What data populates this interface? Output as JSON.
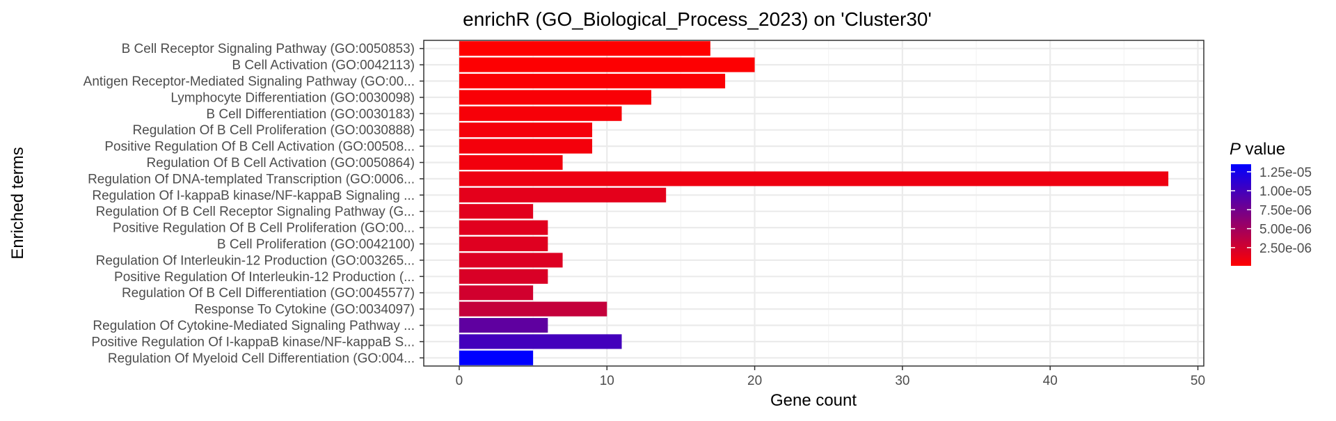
{
  "chart_data": {
    "type": "bar",
    "orientation": "horizontal",
    "title": "enrichR (GO_Biological_Process_2023) on 'Cluster30'",
    "xlabel": "Gene count",
    "ylabel": "Enriched terms",
    "xlim": [
      -2.4,
      50.4
    ],
    "xticks": [
      0,
      10,
      20,
      30,
      40,
      50
    ],
    "grid": true,
    "categories": [
      "B Cell Receptor Signaling Pathway (GO:0050853)",
      "B Cell Activation (GO:0042113)",
      "Antigen Receptor-Mediated Signaling Pathway (GO:00...",
      "Lymphocyte Differentiation (GO:0030098)",
      "B Cell Differentiation (GO:0030183)",
      "Regulation Of B Cell Proliferation (GO:0030888)",
      "Positive Regulation Of B Cell Activation (GO:00508...",
      "Regulation Of B Cell Activation (GO:0050864)",
      "Regulation Of DNA-templated Transcription (GO:0006...",
      "Regulation Of I-kappaB kinase/NF-kappaB Signaling ...",
      "Regulation Of B Cell Receptor Signaling Pathway (G...",
      "Positive Regulation Of B Cell Proliferation (GO:00...",
      "B Cell Proliferation (GO:0042100)",
      "Regulation Of Interleukin-12 Production (GO:003265...",
      "Positive Regulation Of Interleukin-12 Production (...",
      "Regulation Of B Cell Differentiation (GO:0045577)",
      "Response To Cytokine (GO:0034097)",
      "Regulation Of Cytokine-Mediated Signaling Pathway ...",
      "Positive Regulation Of I-kappaB kinase/NF-kappaB S...",
      "Regulation Of Myeloid Cell Differentiation (GO:004..."
    ],
    "values": [
      17,
      20,
      18,
      13,
      11,
      9,
      9,
      7,
      48,
      14,
      5,
      6,
      6,
      7,
      6,
      5,
      10,
      6,
      11,
      5
    ],
    "p_values": [
      1e-07,
      2e-07,
      3e-07,
      4e-07,
      5e-07,
      6e-07,
      7e-07,
      8e-07,
      1e-06,
      1.5e-06,
      1.6e-06,
      1.7e-06,
      1.8e-06,
      1.9e-06,
      2.1e-06,
      2.5e-06,
      3.2e-06,
      8.5e-06,
      1e-05,
      1.35e-05
    ],
    "legend": {
      "title_italic": "P",
      "title_rest": " value",
      "placement": "right",
      "range": [
        1e-07,
        1.35e-05
      ],
      "ticks": [
        {
          "value": 1.25e-05,
          "label": "1.25e-05"
        },
        {
          "value": 1e-05,
          "label": "1.00e-05"
        },
        {
          "value": 7.5e-06,
          "label": "7.50e-06"
        },
        {
          "value": 5e-06,
          "label": "5.00e-06"
        },
        {
          "value": 2.5e-06,
          "label": "2.50e-06"
        }
      ],
      "low_color": "#ff0000",
      "high_color": "#0000ff"
    }
  }
}
